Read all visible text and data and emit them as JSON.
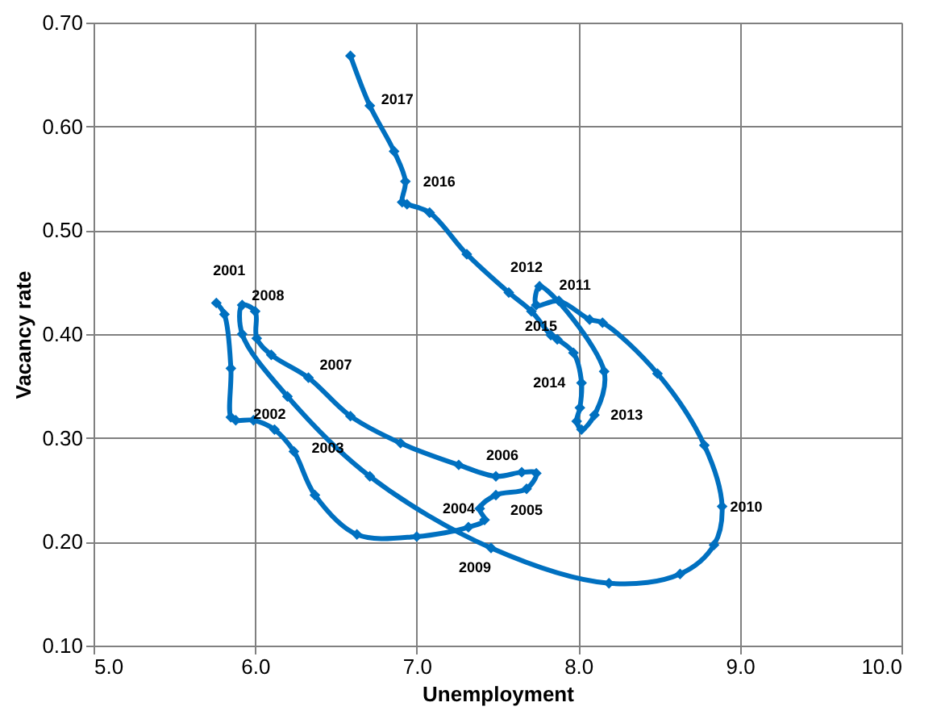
{
  "chart_data": {
    "type": "line",
    "xlabel": "Unemployment",
    "ylabel": "Vacancy rate",
    "marker": "diamond",
    "line_style": "solid",
    "grid": true,
    "xlim": [
      5,
      10
    ],
    "xticks": [
      {
        "value": 5,
        "label": "5.0"
      },
      {
        "value": 6,
        "label": "6.0"
      },
      {
        "value": 7,
        "label": "7.0"
      },
      {
        "value": 8,
        "label": "8.0"
      },
      {
        "value": 9,
        "label": "9.0"
      },
      {
        "value": 10,
        "label": "10.0"
      }
    ],
    "ylim": [
      0.1,
      0.7
    ],
    "yticks": [
      {
        "value": 0.1,
        "label": "0.10"
      },
      {
        "value": 0.2,
        "label": "0.20"
      },
      {
        "value": 0.3,
        "label": "0.30"
      },
      {
        "value": 0.4,
        "label": "0.40"
      },
      {
        "value": 0.5,
        "label": "0.50"
      },
      {
        "value": 0.6,
        "label": "0.60"
      },
      {
        "value": 0.7,
        "label": "0.70"
      }
    ],
    "series": [
      {
        "color": "#0070c0",
        "x": [
          5.76,
          5.81,
          5.85,
          5.85,
          5.88,
          5.99,
          6.12,
          6.24,
          6.37,
          6.63,
          7.0,
          7.32,
          7.42,
          7.39,
          7.49,
          7.68,
          7.74,
          7.65,
          7.49,
          7.26,
          6.9,
          6.59,
          6.33,
          6.1,
          6.01,
          6.0,
          5.92,
          5.92,
          6.2,
          6.71,
          7.46,
          8.19,
          8.63,
          8.84,
          8.89,
          8.78,
          8.49,
          8.15,
          8.07,
          7.88,
          7.74,
          7.76,
          8.16,
          8.1,
          8.02,
          7.99,
          8.01,
          8.02,
          7.97,
          7.87,
          7.83,
          7.71,
          7.57,
          7.31,
          7.08,
          6.94,
          6.91,
          6.93,
          6.86,
          6.71,
          6.59
        ],
        "values": [
          0.43,
          0.419,
          0.367,
          0.32,
          0.317,
          0.317,
          0.308,
          0.287,
          0.245,
          0.207,
          0.205,
          0.214,
          0.221,
          0.232,
          0.245,
          0.251,
          0.266,
          0.267,
          0.263,
          0.274,
          0.295,
          0.321,
          0.358,
          0.38,
          0.396,
          0.422,
          0.428,
          0.4,
          0.34,
          0.263,
          0.194,
          0.16,
          0.169,
          0.197,
          0.234,
          0.293,
          0.362,
          0.411,
          0.414,
          0.432,
          0.428,
          0.446,
          0.364,
          0.322,
          0.308,
          0.316,
          0.329,
          0.353,
          0.382,
          0.395,
          0.399,
          0.422,
          0.44,
          0.477,
          0.517,
          0.525,
          0.527,
          0.547,
          0.576,
          0.62,
          0.668
        ]
      }
    ],
    "annotations": [
      {
        "text": "2001",
        "x": 5.76,
        "y": 0.43
      },
      {
        "text": "2008",
        "x": 6.0,
        "y": 0.422
      },
      {
        "text": "2007",
        "x": 6.33,
        "y": 0.358
      },
      {
        "text": "2002",
        "x": 5.99,
        "y": 0.317
      },
      {
        "text": "2003",
        "x": 6.24,
        "y": 0.287
      },
      {
        "text": "2006",
        "x": 7.49,
        "y": 0.263
      },
      {
        "text": "2004",
        "x": 7.39,
        "y": 0.232
      },
      {
        "text": "2005",
        "x": 7.68,
        "y": 0.251
      },
      {
        "text": "2009",
        "x": 7.46,
        "y": 0.194
      },
      {
        "text": "2010",
        "x": 8.89,
        "y": 0.234
      },
      {
        "text": "2013",
        "x": 8.1,
        "y": 0.322
      },
      {
        "text": "2014",
        "x": 8.02,
        "y": 0.353
      },
      {
        "text": "2015",
        "x": 7.71,
        "y": 0.422
      },
      {
        "text": "2012",
        "x": 7.76,
        "y": 0.446
      },
      {
        "text": "2011",
        "x": 7.88,
        "y": 0.432
      },
      {
        "text": "2016",
        "x": 6.93,
        "y": 0.547
      },
      {
        "text": "2017",
        "x": 6.71,
        "y": 0.62
      }
    ]
  }
}
